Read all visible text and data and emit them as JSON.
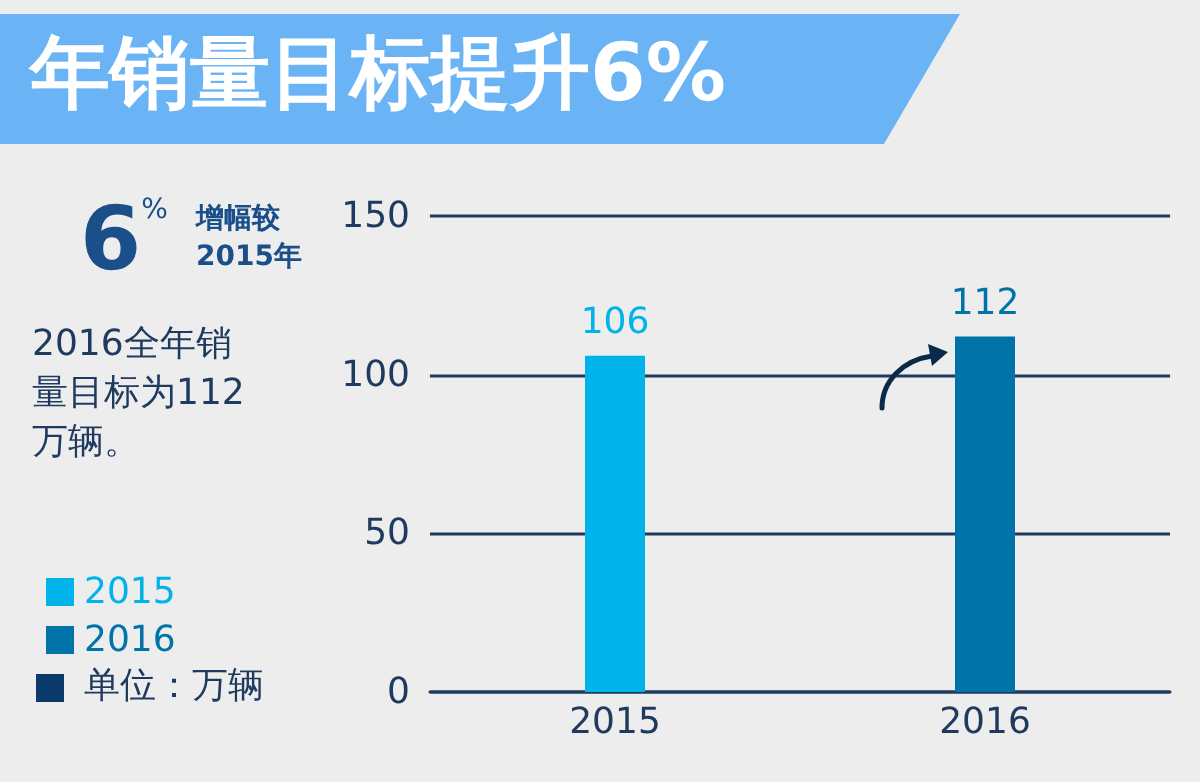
{
  "chart_data": {
    "type": "bar",
    "title": "年销量目标提升6%",
    "categories": [
      "2015",
      "2016"
    ],
    "series": [
      {
        "name": "2015",
        "color": "#00b4ea",
        "values": [
          106,
          null
        ]
      },
      {
        "name": "2016",
        "color": "#0073a8",
        "values": [
          null,
          112
        ]
      }
    ],
    "ylabel": "单位：万辆",
    "annotations": [
      "6%",
      "增幅较2015年",
      "2016全年销量目标为112万辆。"
    ],
    "ylim": [
      0,
      150
    ],
    "yticks": [
      0,
      50,
      100,
      150
    ],
    "grid": "y",
    "legend": "left",
    "data_labels": true
  }
}
